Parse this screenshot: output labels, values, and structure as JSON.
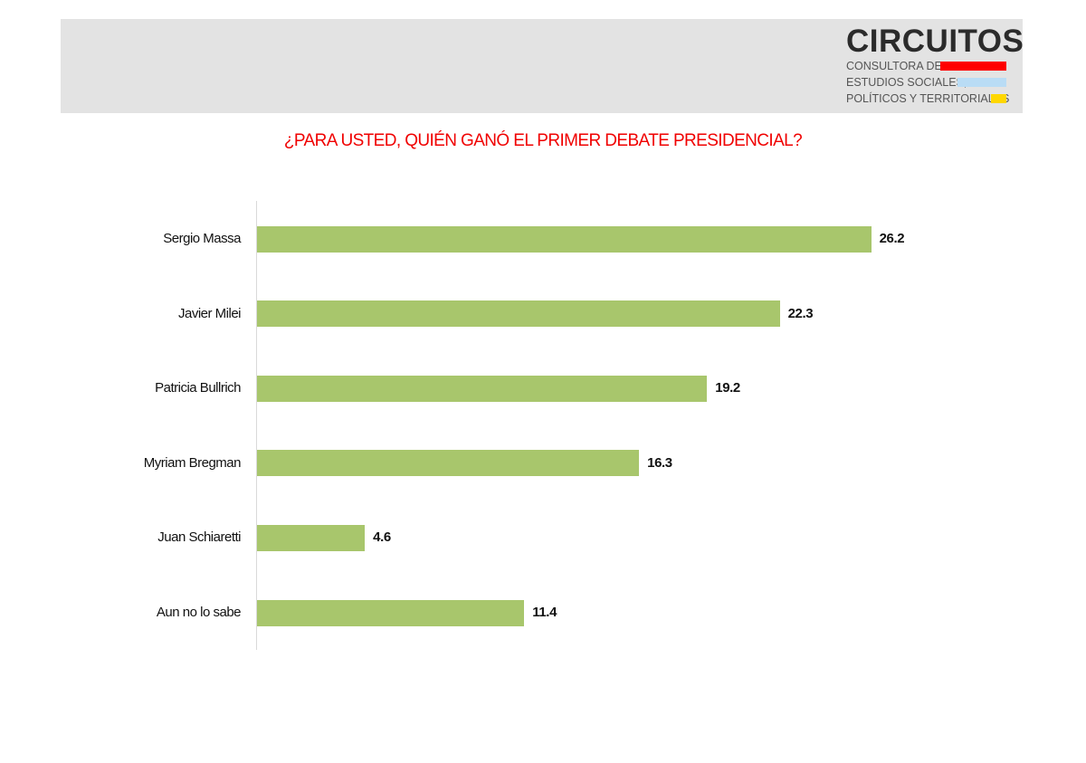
{
  "header": {
    "logo": {
      "title": "CIRCUITOS",
      "lines": [
        "CONSULTORA DE",
        "ESTUDIOS SOCIALES,",
        "POLÍTICOS Y TERRITORIALES"
      ],
      "stripe_colors": [
        "#ff0000",
        "#b9dcf5",
        "#ffd700"
      ]
    }
  },
  "colors": {
    "title": "#f00000",
    "bar": "#a8c66c",
    "header_band": "#e3e3e3"
  },
  "chart_data": {
    "type": "bar",
    "orientation": "horizontal",
    "title": "¿PARA USTED, QUIÉN GANÓ EL PRIMER DEBATE PRESIDENCIAL?",
    "categories": [
      "Sergio Massa",
      "Javier Milei",
      "Patricia Bullrich",
      "Myriam Bregman",
      "Juan Schiaretti",
      "Aun no lo sabe"
    ],
    "values": [
      26.2,
      22.3,
      19.2,
      16.3,
      4.6,
      11.4
    ],
    "value_labels": [
      "26.2",
      "22.3",
      "19.2",
      "16.3",
      "4.6",
      "11.4"
    ],
    "xlabel": "",
    "ylabel": "",
    "grid": false,
    "legend": null,
    "xlim": [
      0,
      30
    ]
  }
}
